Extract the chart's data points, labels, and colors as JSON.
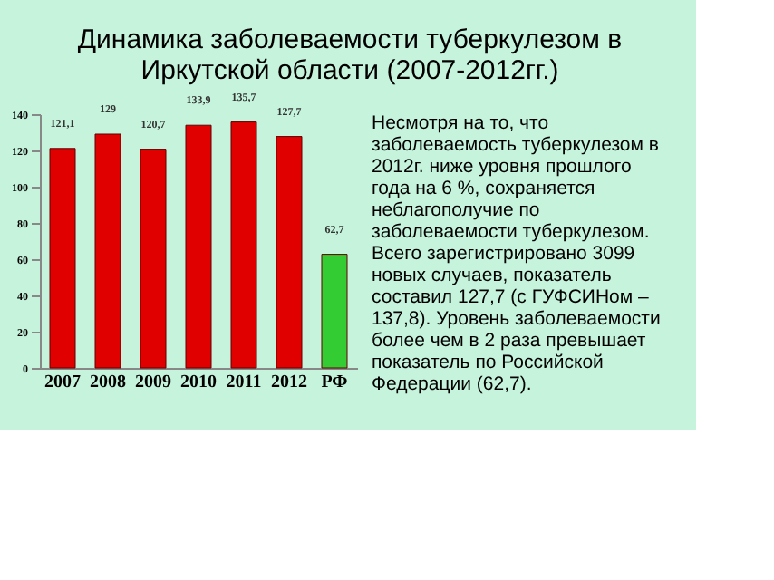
{
  "chart_data": {
    "type": "bar",
    "title": "Динамика заболеваемости туберкулезом в Иркутской области (2007-2012гг.)",
    "categories": [
      "2007",
      "2008",
      "2009",
      "2010",
      "2011",
      "2012",
      "РФ"
    ],
    "values": [
      121.1,
      129,
      120.7,
      133.9,
      135.7,
      127.7,
      62.7
    ],
    "value_labels": [
      "121,1",
      "129",
      "120,7",
      "133,9",
      "135,7",
      "127,7",
      "62,7"
    ],
    "colors": [
      "#e00000",
      "#e00000",
      "#e00000",
      "#e00000",
      "#e00000",
      "#e00000",
      "#33cc33"
    ],
    "ylim": [
      0,
      140
    ],
    "yticks": [
      0,
      20,
      40,
      60,
      80,
      100,
      120,
      140
    ],
    "grid": false,
    "legend": false,
    "annotations": [
      "Несмотря на то, что заболеваемость туберкулезом в 2012г. ниже уровня прошлого года на 6 %, сохраняется неблагополучие по заболеваемости туберкулезом. Всего зарегистрировано 3099 новых случаев, показатель составил 127,7 (с ГУФСИНом – 137,8). Уровень заболеваемости более чем в 2 раза превышает показатель по Российской Федерации (62,7)."
    ]
  }
}
